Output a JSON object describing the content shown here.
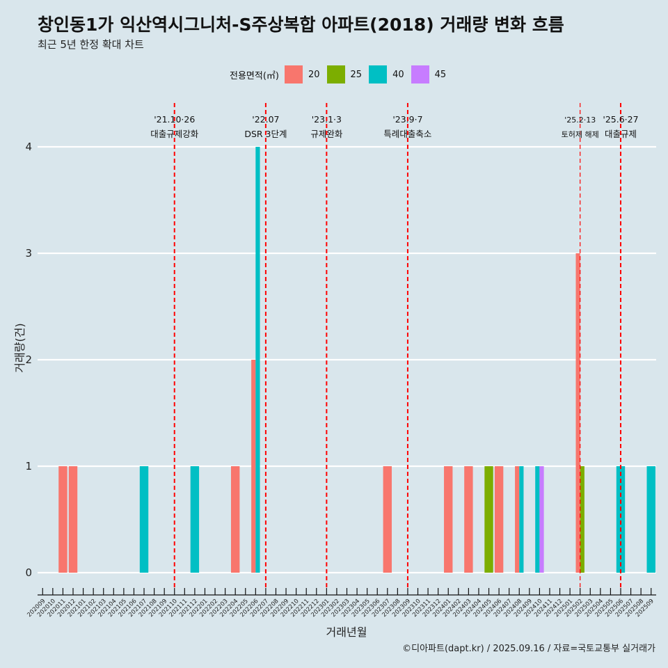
{
  "title": "창인동1가 익산역시그니처-S주상복합 아파트(2018) 거래량 변화 흐름",
  "subtitle": "최근 5년 한정 확대 차트",
  "caption": "©디아파트(dapt.kr) / 2025.09.16 / 자료=국토교통부 실거래가",
  "legend": {
    "title": "전용면적(㎡)",
    "items": [
      {
        "label": "20",
        "color": "#F8766D"
      },
      {
        "label": "25",
        "color": "#7CAE00"
      },
      {
        "label": "40",
        "color": "#00BFC4"
      },
      {
        "label": "45",
        "color": "#C77CFF"
      }
    ]
  },
  "chart_data": {
    "type": "bar",
    "title": "창인동1가 익산역시그니처-S주상복합 아파트(2018) 거래량 변화 흐름",
    "subtitle": "최근 5년 한정 확대 차트",
    "xlabel": "거래년월",
    "ylabel": "거래량(건)",
    "ylim": [
      0,
      4
    ],
    "yticks": [
      0,
      1,
      2,
      3,
      4
    ],
    "grid": true,
    "legend_position": "top",
    "categories": [
      "202009",
      "202010",
      "202011",
      "202012",
      "202101",
      "202102",
      "202103",
      "202104",
      "202105",
      "202106",
      "202107",
      "202108",
      "202109",
      "202110",
      "202111",
      "202112",
      "202201",
      "202202",
      "202203",
      "202204",
      "202205",
      "202206",
      "202207",
      "202208",
      "202209",
      "202210",
      "202211",
      "202212",
      "202301",
      "202302",
      "202303",
      "202304",
      "202305",
      "202306",
      "202307",
      "202308",
      "202309",
      "202310",
      "202311",
      "202312",
      "202401",
      "202402",
      "202403",
      "202404",
      "202405",
      "202406",
      "202407",
      "202408",
      "202409",
      "202410",
      "202411",
      "202412",
      "202501",
      "202502",
      "202503",
      "202504",
      "202505",
      "202506",
      "202507",
      "202508",
      "202509"
    ],
    "series": [
      {
        "name": "20",
        "color": "#F8766D",
        "values": [
          0,
          0,
          1,
          1,
          0,
          0,
          0,
          0,
          0,
          0,
          0,
          0,
          0,
          0,
          0,
          0,
          0,
          0,
          0,
          1,
          0,
          2,
          0,
          0,
          0,
          0,
          0,
          0,
          0,
          0,
          0,
          0,
          0,
          0,
          1,
          0,
          0,
          0,
          0,
          0,
          1,
          0,
          1,
          0,
          0,
          1,
          0,
          1,
          0,
          0,
          0,
          0,
          0,
          3,
          0,
          0,
          0,
          0,
          0,
          0,
          0
        ]
      },
      {
        "name": "25",
        "color": "#7CAE00",
        "values": [
          0,
          0,
          0,
          0,
          0,
          0,
          0,
          0,
          0,
          0,
          0,
          0,
          0,
          0,
          0,
          0,
          0,
          0,
          0,
          0,
          0,
          0,
          0,
          0,
          0,
          0,
          0,
          0,
          0,
          0,
          0,
          0,
          0,
          0,
          0,
          0,
          0,
          0,
          0,
          0,
          0,
          0,
          0,
          0,
          1,
          0,
          0,
          0,
          0,
          0,
          0,
          0,
          0,
          1,
          0,
          0,
          0,
          0,
          0,
          0,
          0
        ]
      },
      {
        "name": "40",
        "color": "#00BFC4",
        "values": [
          0,
          0,
          0,
          0,
          0,
          0,
          0,
          0,
          0,
          0,
          1,
          0,
          0,
          0,
          0,
          1,
          0,
          0,
          0,
          0,
          0,
          4,
          0,
          0,
          0,
          0,
          0,
          0,
          0,
          0,
          0,
          0,
          0,
          0,
          0,
          0,
          0,
          0,
          0,
          0,
          0,
          0,
          0,
          0,
          0,
          0,
          0,
          1,
          0,
          1,
          0,
          0,
          0,
          0,
          0,
          0,
          0,
          1,
          0,
          0,
          1
        ]
      },
      {
        "name": "45",
        "color": "#C77CFF",
        "values": [
          0,
          0,
          0,
          0,
          0,
          0,
          0,
          0,
          0,
          0,
          0,
          0,
          0,
          0,
          0,
          0,
          0,
          0,
          0,
          0,
          0,
          0,
          0,
          0,
          0,
          0,
          0,
          0,
          0,
          0,
          0,
          0,
          0,
          0,
          0,
          0,
          0,
          0,
          0,
          0,
          0,
          0,
          0,
          0,
          0,
          0,
          0,
          0,
          0,
          1,
          0,
          0,
          0,
          0,
          0,
          0,
          0,
          0,
          0,
          0,
          0
        ]
      }
    ],
    "annotations": [
      {
        "x": "202110",
        "date": "'21.10·26",
        "label": "대출규제강화",
        "color": "#ff0000"
      },
      {
        "x": "202207",
        "date": "'22.07",
        "label": "DSR 3단계",
        "color": "#ff0000"
      },
      {
        "x": "202301",
        "date": "'23.1·3",
        "label": "규제완화",
        "color": "#ff0000"
      },
      {
        "x": "202309",
        "date": "'23.9·7",
        "label": "특례대출축소",
        "color": "#ff0000"
      },
      {
        "x": "202502",
        "date": "'25.2·13",
        "label": "토허제 해제",
        "color": "#ff0000"
      },
      {
        "x": "202506",
        "date": "'25.6·27",
        "label": "대출규제",
        "color": "#ff0000"
      }
    ]
  }
}
